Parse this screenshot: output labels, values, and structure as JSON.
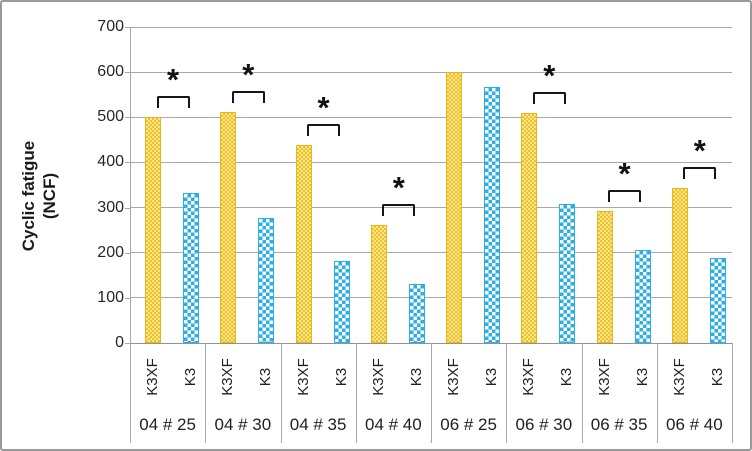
{
  "chart_data": {
    "type": "bar",
    "title": "",
    "ylabel": "Cyclic fatigue (NCF)",
    "ylabel_lines": [
      "Cyclic fatigue",
      "(NCF)"
    ],
    "ylim": [
      0,
      700
    ],
    "ytick_step": 100,
    "ytick_labels": [
      "0",
      "100",
      "200",
      "300",
      "400",
      "500",
      "600",
      "700"
    ],
    "categories": [
      "04 # 25",
      "04 # 30",
      "04 # 35",
      "04 # 40",
      "06 # 25",
      "06 # 30",
      "06 # 35",
      "06 # 40"
    ],
    "series": [
      {
        "name": "K3XF",
        "values": [
          500,
          512,
          439,
          261,
          601,
          510,
          292,
          343
        ]
      },
      {
        "name": "K3",
        "values": [
          333,
          276,
          182,
          131,
          568,
          307,
          206,
          189
        ]
      }
    ],
    "bar_labels_per_group": [
      "K3XF",
      "K3"
    ],
    "significance_markers": {
      "symbol": "*",
      "per_group": [
        true,
        true,
        true,
        true,
        false,
        true,
        true,
        true
      ],
      "meaning": "bracket joining the K3XF/K3 pair with an asterisk above"
    },
    "legend_position": "none",
    "grid": "horizontal"
  },
  "style": {
    "series_fill": [
      "#eec01c",
      "#2bafe4"
    ],
    "series_pattern": [
      "light-dots",
      "white-checkerboard"
    ],
    "gridline_color": "#a8a8a8",
    "axis_color": "#929292",
    "text_color": "#1f1f1f",
    "marker_color": "#151515",
    "frame_border_color": "#9a9a9a",
    "background_color": "#ffffff"
  }
}
